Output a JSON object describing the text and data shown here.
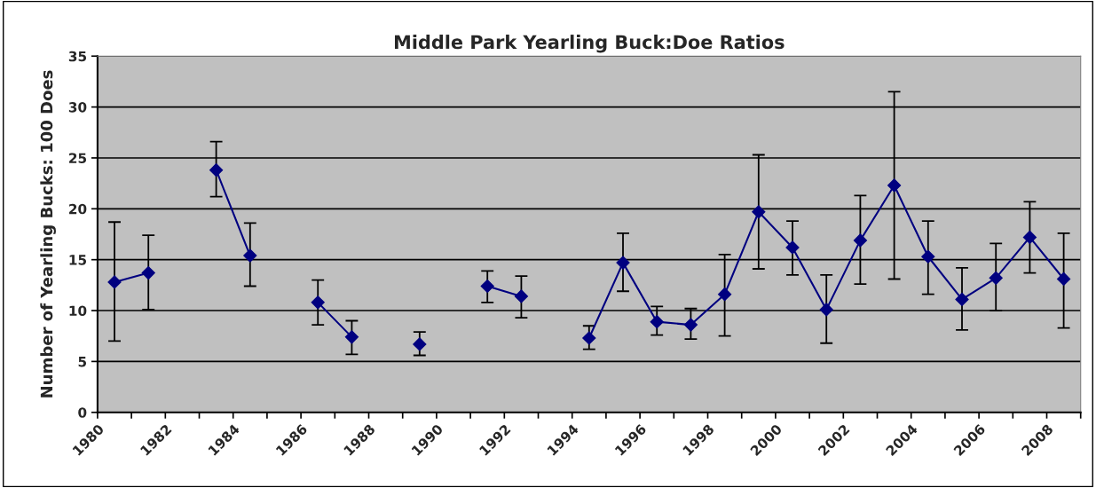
{
  "chart_data": {
    "type": "line",
    "title": "Middle Park Yearling Buck:Doe Ratios",
    "ylabel": "Number of Yearling Bucks: 100 Does",
    "x": [
      1980.5,
      1981.5,
      1982.5,
      1983.5,
      1984.5,
      1985.5,
      1986.5,
      1987.5,
      1988.5,
      1989.5,
      1990.5,
      1991.5,
      1992.5,
      1993.5,
      1994.5,
      1995.5,
      1996.5,
      1997.5,
      1998.5,
      1999.5,
      2000.5,
      2001.5,
      2002.5,
      2003.5,
      2004.5,
      2005.5,
      2006.5,
      2007.5,
      2008.5
    ],
    "series": [
      {
        "color": "#000080",
        "values": [
          12.8,
          13.7,
          null,
          23.8,
          15.4,
          null,
          10.8,
          7.4,
          null,
          6.7,
          null,
          12.4,
          11.4,
          null,
          7.3,
          14.7,
          8.9,
          8.6,
          11.6,
          19.7,
          16.2,
          10.1,
          16.9,
          22.3,
          15.3,
          11.1,
          13.2,
          17.2,
          13.1
        ],
        "errors": [
          [
            7.0,
            18.7
          ],
          [
            10.1,
            17.4
          ],
          null,
          [
            21.2,
            26.6
          ],
          [
            12.4,
            18.6
          ],
          null,
          [
            8.6,
            13.0
          ],
          [
            5.7,
            9.0
          ],
          null,
          [
            5.6,
            7.9
          ],
          null,
          [
            10.8,
            13.9
          ],
          [
            9.3,
            13.4
          ],
          null,
          [
            6.2,
            8.5
          ],
          [
            11.9,
            17.6
          ],
          [
            7.6,
            10.4
          ],
          [
            7.2,
            10.2
          ],
          [
            7.5,
            15.5
          ],
          [
            14.1,
            25.3
          ],
          [
            13.5,
            18.8
          ],
          [
            6.8,
            13.5
          ],
          [
            12.6,
            21.3
          ],
          [
            13.1,
            31.5
          ],
          [
            11.6,
            18.8
          ],
          [
            8.1,
            14.2
          ],
          [
            10.0,
            16.6
          ],
          [
            13.7,
            20.7
          ],
          [
            8.3,
            17.6
          ]
        ]
      }
    ],
    "xlim": [
      1980,
      2009
    ],
    "xticks": [
      1980,
      {
        "value": 1981,
        "label": null
      },
      1982,
      {
        "value": 1983,
        "label": null
      },
      1984,
      {
        "value": 1985,
        "label": null
      },
      1986,
      {
        "value": 1987,
        "label": null
      },
      1988,
      {
        "value": 1989,
        "label": null
      },
      1990,
      {
        "value": 1991,
        "label": null
      },
      1992,
      {
        "value": 1993,
        "label": null
      },
      1994,
      {
        "value": 1995,
        "label": null
      },
      1996,
      {
        "value": 1997,
        "label": null
      },
      1998,
      {
        "value": 1999,
        "label": null
      },
      2000,
      {
        "value": 2001,
        "label": null
      },
      2002,
      {
        "value": 2003,
        "label": null
      },
      2004,
      {
        "value": 2005,
        "label": null
      },
      2006,
      {
        "value": 2007,
        "label": null
      },
      2008,
      {
        "value": 2009,
        "label": null
      }
    ],
    "ylim": [
      0,
      35
    ],
    "yticks": [
      0,
      5,
      10,
      15,
      20,
      25,
      30,
      35
    ],
    "grid": "y",
    "marker": "diamond",
    "line_style": "solid",
    "legend": false
  }
}
